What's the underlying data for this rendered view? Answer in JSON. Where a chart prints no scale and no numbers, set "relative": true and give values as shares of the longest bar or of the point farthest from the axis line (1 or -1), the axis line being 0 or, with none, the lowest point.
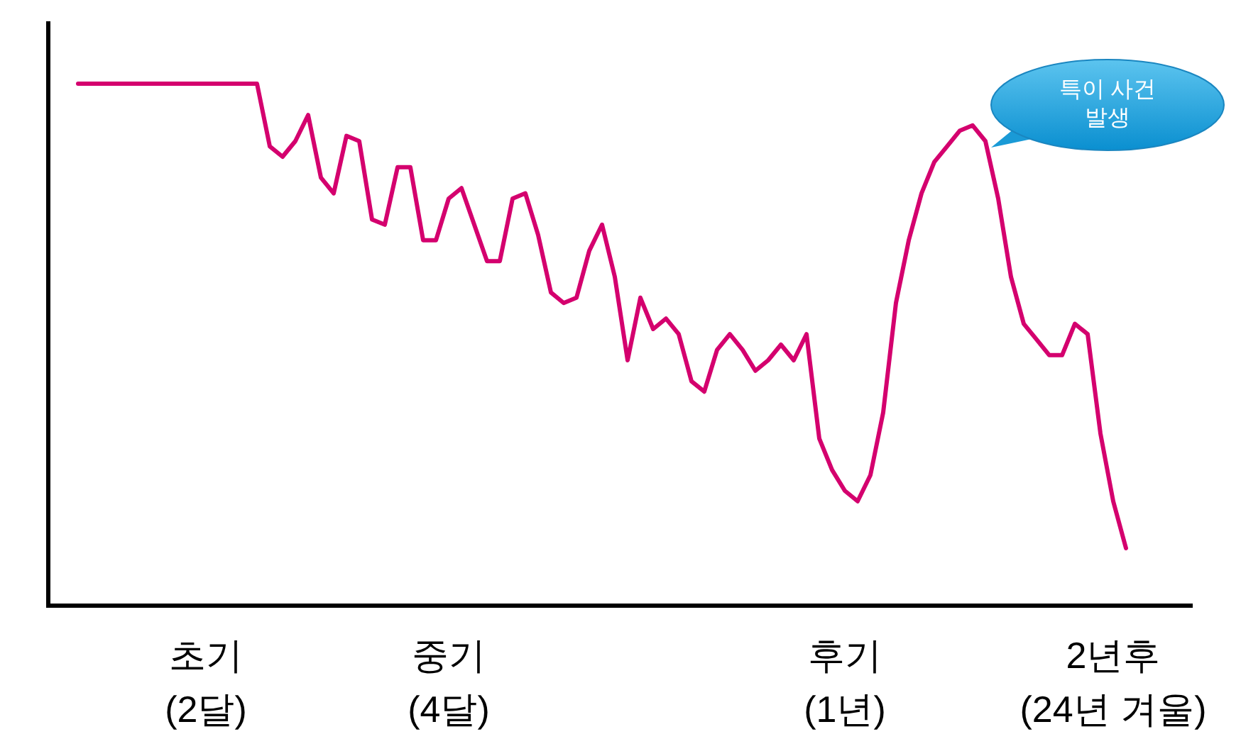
{
  "chart_data": {
    "type": "line",
    "relative": true,
    "categories": [
      null,
      null,
      null,
      null,
      null,
      null,
      null,
      null,
      null,
      null,
      "초기\n(2달)",
      null,
      null,
      null,
      null,
      null,
      null,
      null,
      null,
      null,
      null,
      null,
      null,
      null,
      null,
      null,
      null,
      null,
      null,
      "중기\n(4달)",
      null,
      null,
      null,
      null,
      null,
      null,
      null,
      null,
      null,
      null,
      null,
      null,
      null,
      null,
      null,
      null,
      null,
      null,
      null,
      null,
      null,
      null,
      null,
      null,
      null,
      null,
      null,
      null,
      null,
      null,
      "후기\n(1년)",
      null,
      null,
      null,
      null,
      null,
      null,
      null,
      null,
      null,
      null,
      null,
      null,
      null,
      null,
      null,
      null,
      null,
      null,
      null,
      null,
      "2년후\n(24년 겨울)",
      null
    ],
    "series": [
      {
        "color": "#d4006e",
        "values": [
          1,
          1,
          1,
          1,
          1,
          1,
          1,
          1,
          1,
          1,
          1,
          1,
          1,
          1,
          1,
          0.88,
          0.86,
          0.89,
          0.94,
          0.82,
          0.79,
          0.9,
          0.89,
          0.74,
          0.73,
          0.84,
          0.84,
          0.7,
          0.7,
          0.78,
          0.8,
          0.73,
          0.66,
          0.66,
          0.78,
          0.79,
          0.71,
          0.6,
          0.58,
          0.59,
          0.68,
          0.73,
          0.63,
          0.47,
          0.59,
          0.53,
          0.55,
          0.52,
          0.43,
          0.41,
          0.49,
          0.52,
          0.49,
          0.45,
          0.47,
          0.5,
          0.47,
          0.52,
          0.32,
          0.26,
          0.22,
          0.2,
          0.25,
          0.37,
          0.58,
          0.7,
          0.79,
          0.85,
          0.88,
          0.91,
          0.92,
          0.89,
          0.78,
          0.63,
          0.54,
          0.51,
          0.48,
          0.48,
          0.54,
          0.52,
          0.33,
          0.2,
          0.11
        ]
      }
    ],
    "annotations": [
      "특이 사건 발생"
    ]
  }
}
